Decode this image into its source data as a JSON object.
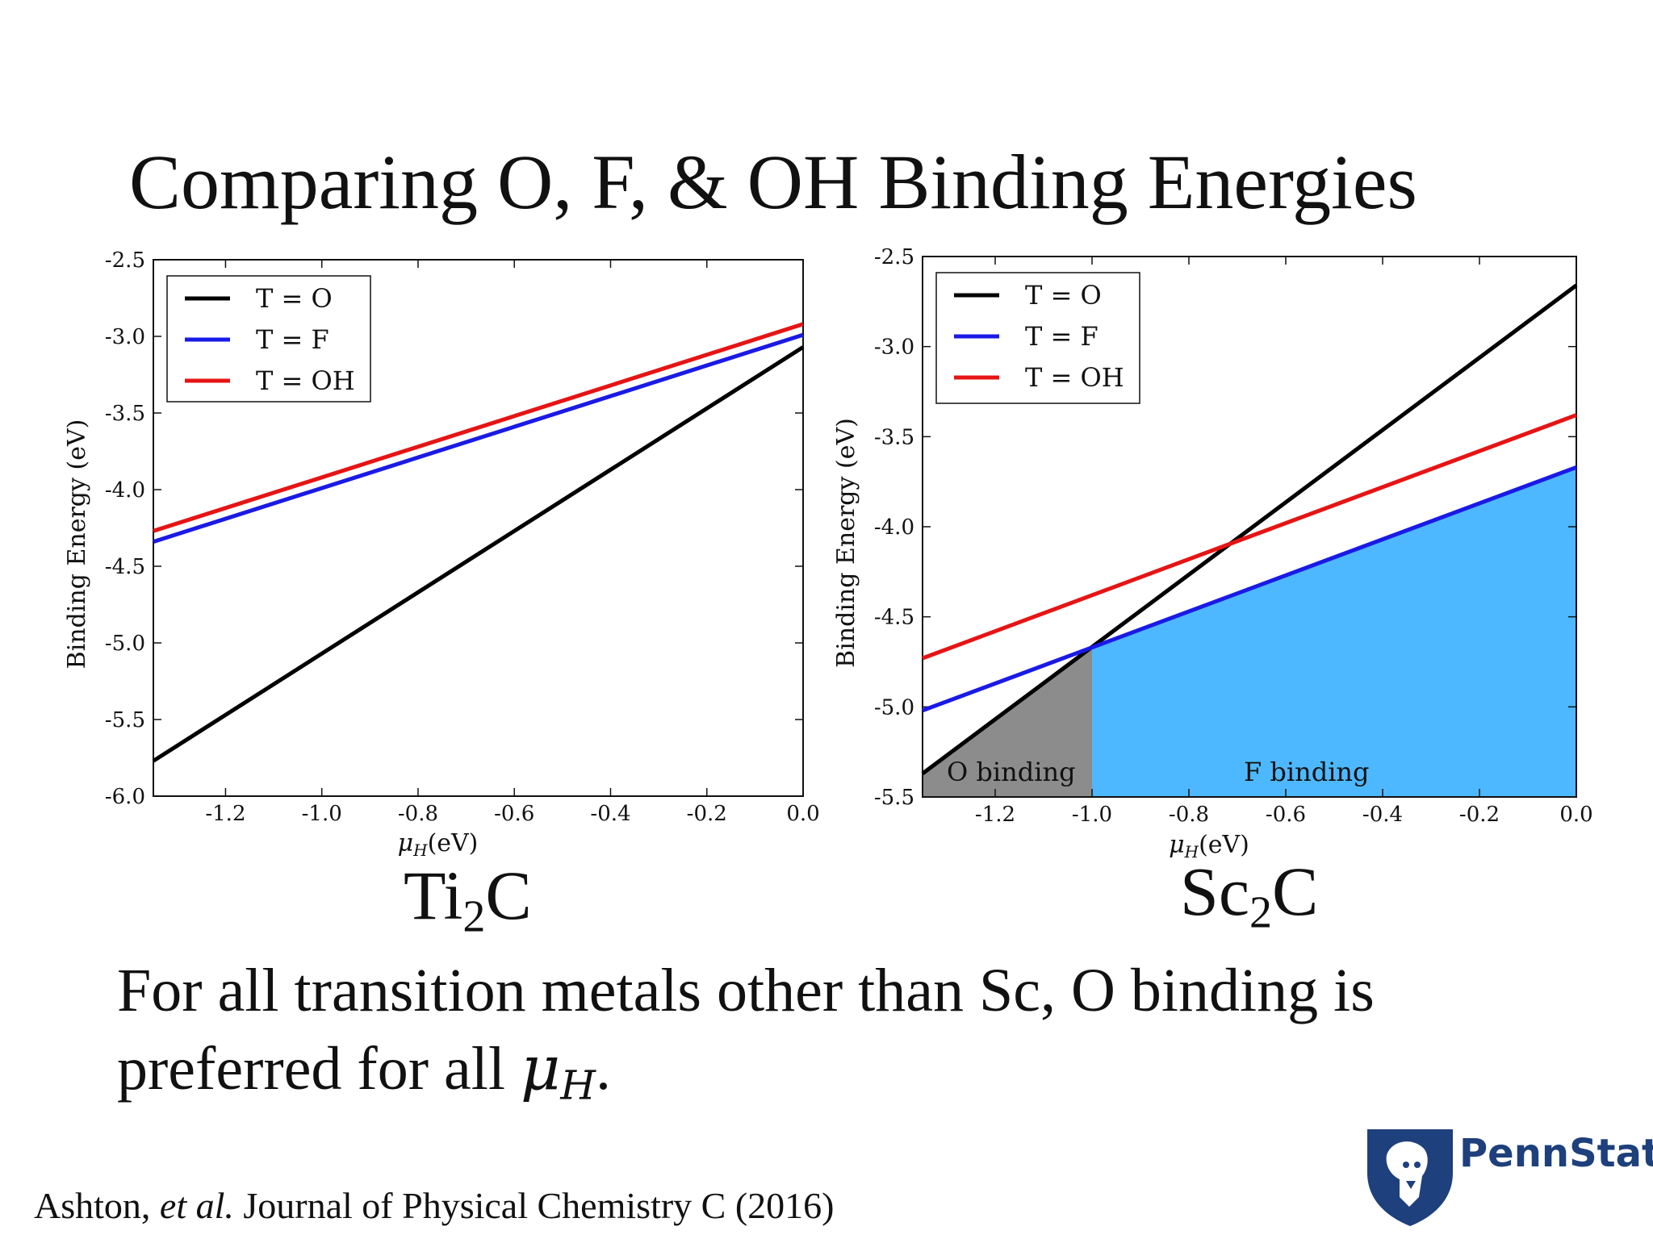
{
  "slide": {
    "title": "Comparing O, F, & OH Binding Energies",
    "body_line1": "For all transition metals other than Sc, O binding is",
    "body_line2_prefix": "preferred for all ",
    "body_mu": "μ",
    "body_mu_sub": "H",
    "body_line2_suffix": ".",
    "citation_author": "Ashton, ",
    "citation_etal": "et al.",
    "citation_journal": " Journal of Physical Chemistry C (2016)",
    "logo_text": "PennState",
    "colors": {
      "O": "#000000",
      "F": "#1a1ae6",
      "OH": "#e61414",
      "f_region": "#4db8ff",
      "o_region": "#8c8c8c",
      "logo": "#1e407c"
    }
  },
  "chart_data": [
    {
      "type": "line",
      "material": "Ti",
      "material_sub": "2",
      "material_suffix": "C",
      "xlabel": "μH(eV)",
      "ylabel": "Binding Energy (eV)",
      "xlim": [
        -1.35,
        0.0
      ],
      "ylim": [
        -6.0,
        -2.5
      ],
      "xticks": [
        "-1.2",
        "-1.0",
        "-0.8",
        "-0.6",
        "-0.4",
        "-0.2",
        "0.0"
      ],
      "yticks": [
        "-2.5",
        "-3.0",
        "-3.5",
        "-4.0",
        "-4.5",
        "-5.0",
        "-5.5",
        "-6.0"
      ],
      "legend_position": "top-left",
      "series": [
        {
          "name": "T = O",
          "x": [
            -1.35,
            0.0
          ],
          "y": [
            -5.77,
            -3.07
          ]
        },
        {
          "name": "T = F",
          "x": [
            -1.35,
            0.0
          ],
          "y": [
            -4.34,
            -2.99
          ]
        },
        {
          "name": "T = OH",
          "x": [
            -1.35,
            0.0
          ],
          "y": [
            -4.27,
            -2.92
          ]
        }
      ]
    },
    {
      "type": "line",
      "material": "Sc",
      "material_sub": "2",
      "material_suffix": "C",
      "xlabel": "μH(eV)",
      "ylabel": "Binding Energy (eV)",
      "xlim": [
        -1.35,
        0.0
      ],
      "ylim": [
        -5.5,
        -2.5
      ],
      "xticks": [
        "-1.2",
        "-1.0",
        "-0.8",
        "-0.6",
        "-0.4",
        "-0.2",
        "0.0"
      ],
      "yticks": [
        "-2.5",
        "-3.0",
        "-3.5",
        "-4.0",
        "-4.5",
        "-5.0",
        "-5.5"
      ],
      "legend_position": "top-left",
      "series": [
        {
          "name": "T = O",
          "x": [
            -1.35,
            0.0
          ],
          "y": [
            -5.37,
            -2.66
          ]
        },
        {
          "name": "T = F",
          "x": [
            -1.35,
            0.0
          ],
          "y": [
            -5.02,
            -3.67
          ]
        },
        {
          "name": "T = OH",
          "x": [
            -1.35,
            0.0
          ],
          "y": [
            -4.73,
            -3.38
          ]
        }
      ],
      "regions": [
        {
          "label": "O binding",
          "x_from": -1.35,
          "x_to": -1.0
        },
        {
          "label": "F binding",
          "x_from": -1.0,
          "x_to": 0.0
        }
      ]
    }
  ]
}
